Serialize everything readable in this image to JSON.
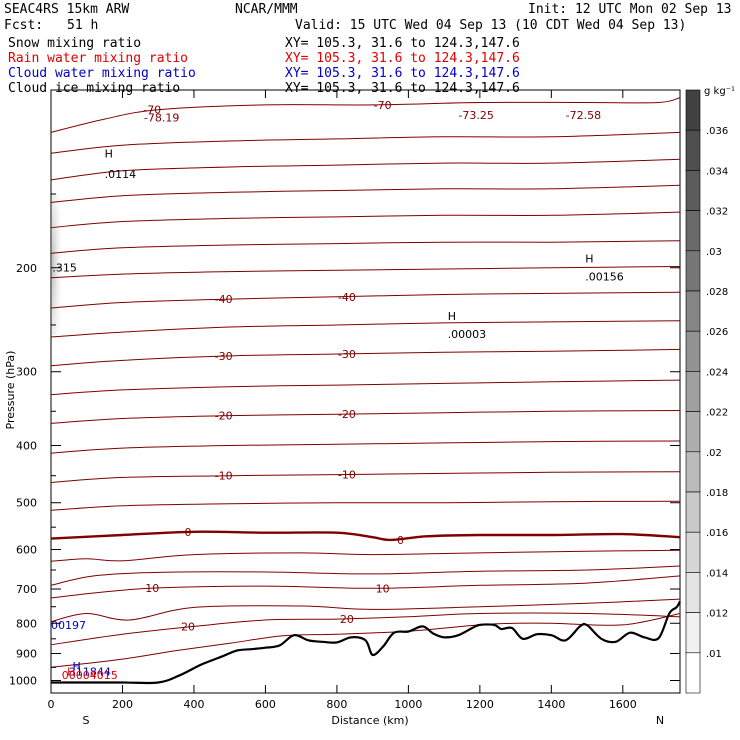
{
  "header": {
    "model": "SEAC4RS 15km ARW",
    "fcst_label": "Fcst:",
    "fcst_value": "51 h",
    "producer": "NCAR/MMM",
    "init": "Init: 12 UTC Mon 02 Sep 13",
    "valid": "Valid: 15 UTC Wed 04 Sep 13 (10 CDT Wed 04 Sep 13)",
    "fields": [
      {
        "name": "Snow mixing ratio",
        "xy": "XY= 105.3, 31.6 to 124.3,147.6",
        "color": "#000000"
      },
      {
        "name": "Rain water mixing ratio",
        "xy": "XY= 105.3, 31.6 to 124.3,147.6",
        "color": "#e00000"
      },
      {
        "name": "Cloud water mixing ratio",
        "xy": "XY= 105.3, 31.6 to 124.3,147.6",
        "color": "#0000c8"
      },
      {
        "name": "Cloud ice mixing ratio",
        "xy": "XY= 105.3, 31.6 to 124.3,147.6",
        "color": "#000000"
      }
    ]
  },
  "chart_data": {
    "type": "line",
    "xlabel": "Distance (km)",
    "ylabel": "Pressure (hPa)",
    "xlim": [
      0,
      1760
    ],
    "ylim": [
      1050,
      100
    ],
    "y_scale": "log",
    "x_ticks": [
      "0",
      "200",
      "400",
      "600",
      "800",
      "1000",
      "1200",
      "1400",
      "1600"
    ],
    "y_ticks": [
      "200",
      "300",
      "400",
      "500",
      "600",
      "700",
      "800",
      "900",
      "1000"
    ],
    "end_labels": {
      "left": "S",
      "right": "N"
    },
    "colorbar": {
      "unit": "g kg⁻¹",
      "labels": [
        ".036",
        ".034",
        ".032",
        ".03",
        ".028",
        ".026",
        ".024",
        ".022",
        ".02",
        ".018",
        ".016",
        ".014",
        ".012",
        ".01"
      ]
    },
    "temperature_isotherms": [
      {
        "label": "-70",
        "points": [
          [
            0,
            118
          ],
          [
            150,
            112
          ],
          [
            300,
            108
          ],
          [
            600,
            106
          ],
          [
            900,
            106
          ],
          [
            1200,
            105
          ],
          [
            1500,
            105
          ],
          [
            1700,
            105
          ],
          [
            1760,
            103
          ]
        ]
      },
      {
        "label": "",
        "points": [
          [
            0,
            128
          ],
          [
            200,
            124
          ],
          [
            500,
            122
          ],
          [
            800,
            121
          ],
          [
            1100,
            120
          ],
          [
            1400,
            120
          ],
          [
            1760,
            118
          ]
        ]
      },
      {
        "label": "",
        "points": [
          [
            0,
            142
          ],
          [
            200,
            137
          ],
          [
            500,
            135
          ],
          [
            800,
            134
          ],
          [
            1100,
            133
          ],
          [
            1400,
            133
          ],
          [
            1760,
            131
          ]
        ]
      },
      {
        "label": "",
        "points": [
          [
            0,
            155
          ],
          [
            200,
            151
          ],
          [
            500,
            149
          ],
          [
            800,
            148
          ],
          [
            1100,
            147
          ],
          [
            1400,
            147
          ],
          [
            1760,
            145
          ]
        ]
      },
      {
        "label": "",
        "points": [
          [
            0,
            171
          ],
          [
            200,
            167
          ],
          [
            500,
            165
          ],
          [
            800,
            164
          ],
          [
            1100,
            163
          ],
          [
            1400,
            163
          ],
          [
            1760,
            161
          ]
        ]
      },
      {
        "label": "",
        "points": [
          [
            0,
            189
          ],
          [
            200,
            185
          ],
          [
            500,
            183
          ],
          [
            800,
            182
          ],
          [
            1100,
            181
          ],
          [
            1400,
            181
          ],
          [
            1760,
            180
          ]
        ]
      },
      {
        "label": "",
        "points": [
          [
            0,
            208
          ],
          [
            200,
            205
          ],
          [
            500,
            203
          ],
          [
            800,
            202
          ],
          [
            1100,
            201
          ],
          [
            1400,
            200
          ],
          [
            1760,
            199
          ]
        ]
      },
      {
        "label": "-40",
        "points": [
          [
            0,
            234
          ],
          [
            200,
            229
          ],
          [
            500,
            226
          ],
          [
            800,
            224
          ],
          [
            1100,
            222
          ],
          [
            1400,
            221
          ],
          [
            1760,
            220
          ]
        ]
      },
      {
        "label": "",
        "points": [
          [
            0,
            262
          ],
          [
            200,
            257
          ],
          [
            500,
            252
          ],
          [
            800,
            250
          ],
          [
            1100,
            248
          ],
          [
            1400,
            247
          ],
          [
            1760,
            246
          ]
        ]
      },
      {
        "label": "-30",
        "points": [
          [
            0,
            293
          ],
          [
            200,
            287
          ],
          [
            500,
            282
          ],
          [
            800,
            280
          ],
          [
            1100,
            278
          ],
          [
            1400,
            277
          ],
          [
            1760,
            275
          ]
        ]
      },
      {
        "label": "",
        "points": [
          [
            0,
            328
          ],
          [
            200,
            322
          ],
          [
            500,
            318
          ],
          [
            800,
            316
          ],
          [
            1100,
            314
          ],
          [
            1400,
            312
          ],
          [
            1760,
            310
          ]
        ]
      },
      {
        "label": "-20",
        "points": [
          [
            0,
            367
          ],
          [
            200,
            360
          ],
          [
            500,
            356
          ],
          [
            800,
            354
          ],
          [
            1100,
            352
          ],
          [
            1400,
            350
          ],
          [
            1760,
            349
          ]
        ]
      },
      {
        "label": "",
        "points": [
          [
            0,
            412
          ],
          [
            200,
            404
          ],
          [
            500,
            400
          ],
          [
            800,
            398
          ],
          [
            1100,
            396
          ],
          [
            1400,
            394
          ],
          [
            1760,
            393
          ]
        ]
      },
      {
        "label": "-10",
        "points": [
          [
            0,
            462
          ],
          [
            200,
            453
          ],
          [
            500,
            450
          ],
          [
            800,
            448
          ],
          [
            1100,
            446
          ],
          [
            1400,
            444
          ],
          [
            1760,
            443
          ]
        ]
      },
      {
        "label": "",
        "points": [
          [
            0,
            515
          ],
          [
            200,
            506
          ],
          [
            500,
            502
          ],
          [
            800,
            500
          ],
          [
            1100,
            500
          ],
          [
            1400,
            498
          ],
          [
            1760,
            497
          ]
        ]
      },
      {
        "label": "0",
        "bold": true,
        "points": [
          [
            0,
            575
          ],
          [
            200,
            567
          ],
          [
            400,
            560
          ],
          [
            600,
            562
          ],
          [
            800,
            562
          ],
          [
            900,
            572
          ],
          [
            950,
            578
          ],
          [
            1050,
            570
          ],
          [
            1200,
            567
          ],
          [
            1400,
            567
          ],
          [
            1600,
            565
          ],
          [
            1760,
            572
          ]
        ]
      },
      {
        "label": "",
        "points": [
          [
            0,
            628
          ],
          [
            100,
            622
          ],
          [
            200,
            627
          ],
          [
            400,
            612
          ],
          [
            700,
            608
          ],
          [
            900,
            612
          ],
          [
            1200,
            608
          ],
          [
            1500,
            604
          ],
          [
            1760,
            602
          ]
        ]
      },
      {
        "label": "",
        "points": [
          [
            0,
            690
          ],
          [
            120,
            665
          ],
          [
            300,
            656
          ],
          [
            600,
            655
          ],
          [
            900,
            660
          ],
          [
            1200,
            653
          ],
          [
            1500,
            650
          ],
          [
            1760,
            640
          ]
        ]
      },
      {
        "label": "10",
        "points": [
          [
            0,
            725
          ],
          [
            150,
            708
          ],
          [
            300,
            697
          ],
          [
            600,
            692
          ],
          [
            900,
            698
          ],
          [
            1200,
            690
          ],
          [
            1500,
            684
          ],
          [
            1760,
            665
          ]
        ]
      },
      {
        "label": "",
        "points": [
          [
            0,
            795
          ],
          [
            100,
            770
          ],
          [
            220,
            790
          ],
          [
            400,
            752
          ],
          [
            700,
            748
          ],
          [
            900,
            758
          ],
          [
            1200,
            750
          ],
          [
            1500,
            740
          ],
          [
            1760,
            728
          ]
        ]
      },
      {
        "label": "20",
        "points": [
          [
            0,
            870
          ],
          [
            200,
            835
          ],
          [
            400,
            810
          ],
          [
            600,
            790
          ],
          [
            800,
            787
          ],
          [
            1000,
            780
          ],
          [
            1200,
            770
          ],
          [
            1500,
            770
          ],
          [
            1760,
            780
          ]
        ]
      },
      {
        "label": "",
        "points": [
          [
            0,
            950
          ],
          [
            200,
            920
          ],
          [
            350,
            890
          ],
          [
            500,
            865
          ],
          [
            650,
            840
          ],
          [
            800,
            835
          ],
          [
            1000,
            825
          ],
          [
            1200,
            805
          ],
          [
            1300,
            800
          ],
          [
            1400,
            800
          ],
          [
            1600,
            805
          ],
          [
            1760,
            770
          ]
        ]
      }
    ],
    "terrain": {
      "points": [
        [
          0,
          1008
        ],
        [
          100,
          1008
        ],
        [
          200,
          1008
        ],
        [
          300,
          1008
        ],
        [
          360,
          980
        ],
        [
          420,
          940
        ],
        [
          480,
          910
        ],
        [
          520,
          890
        ],
        [
          560,
          885
        ],
        [
          600,
          880
        ],
        [
          640,
          872
        ],
        [
          680,
          838
        ],
        [
          720,
          855
        ],
        [
          760,
          860
        ],
        [
          800,
          862
        ],
        [
          840,
          845
        ],
        [
          880,
          855
        ],
        [
          900,
          905
        ],
        [
          930,
          875
        ],
        [
          960,
          830
        ],
        [
          1000,
          826
        ],
        [
          1040,
          810
        ],
        [
          1070,
          833
        ],
        [
          1100,
          845
        ],
        [
          1140,
          838
        ],
        [
          1180,
          814
        ],
        [
          1200,
          805
        ],
        [
          1240,
          805
        ],
        [
          1260,
          818
        ],
        [
          1290,
          815
        ],
        [
          1320,
          850
        ],
        [
          1360,
          835
        ],
        [
          1400,
          838
        ],
        [
          1440,
          855
        ],
        [
          1480,
          810
        ],
        [
          1500,
          806
        ],
        [
          1540,
          850
        ],
        [
          1580,
          860
        ],
        [
          1620,
          830
        ],
        [
          1660,
          845
        ],
        [
          1700,
          848
        ],
        [
          1730,
          770
        ],
        [
          1750,
          752
        ],
        [
          1760,
          735
        ]
      ]
    },
    "annotations": [
      {
        "text": "-78.19",
        "x": 260,
        "p": 113,
        "color": "#800000"
      },
      {
        "text": "-73.25",
        "x": 1140,
        "p": 112,
        "color": "#800000"
      },
      {
        "text": "-72.58",
        "x": 1440,
        "p": 112,
        "color": "#800000"
      },
      {
        "text": "H",
        "x": 150,
        "p": 130,
        "color": "#000000"
      },
      {
        "text": ".0114",
        "x": 150,
        "p": 141,
        "color": "#000000"
      },
      {
        "text": ".315",
        "x": 4,
        "p": 203,
        "color": "#000000"
      },
      {
        "text": "H",
        "x": 1495,
        "p": 196,
        "color": "#000000"
      },
      {
        "text": ".00156",
        "x": 1495,
        "p": 210,
        "color": "#000000"
      },
      {
        "text": "H",
        "x": 1110,
        "p": 245,
        "color": "#000000"
      },
      {
        "text": ".00003",
        "x": 1110,
        "p": 263,
        "color": "#000000"
      },
      {
        "text": "00197",
        "x": 0,
        "p": 818,
        "color": "#0000c8"
      },
      {
        "text": "H",
        "x": 60,
        "p": 960,
        "color": "#0000c8"
      },
      {
        "text": "311844",
        "x": 50,
        "p": 980,
        "color": "#0000c8"
      },
      {
        "text": "H",
        "x": 45,
        "p": 980,
        "color": "#e00000"
      },
      {
        "text": "00004015",
        "x": 30,
        "p": 994,
        "color": "#e00000"
      }
    ]
  }
}
